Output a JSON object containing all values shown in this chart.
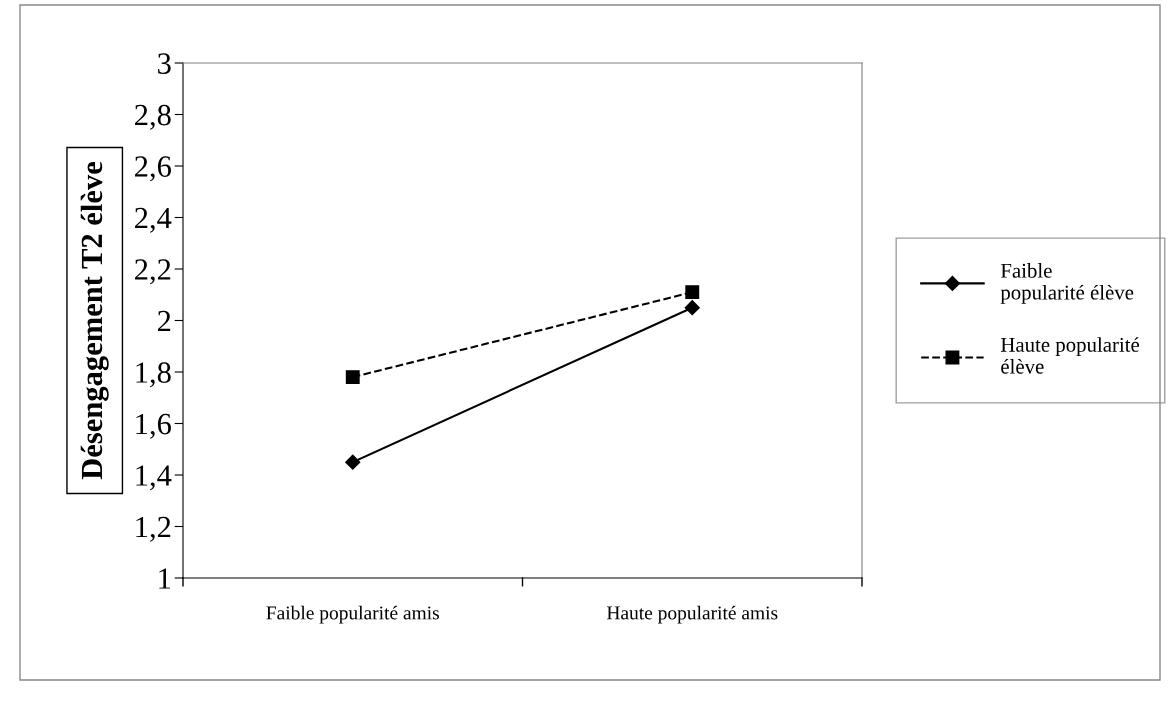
{
  "chart_data": {
    "type": "line",
    "ylabel": "Désengagement T2 élève",
    "categories": [
      "Faible popularité amis",
      "Haute popularité amis"
    ],
    "series": [
      {
        "name": "Faible\npopularité élève",
        "color": "#000000",
        "values": [
          1.45,
          2.05
        ],
        "marker": "diamond",
        "line_style": "solid"
      },
      {
        "name": "Haute popularité\nélève",
        "color": "#000000",
        "values": [
          1.78,
          2.11
        ],
        "marker": "square",
        "line_style": "dashed"
      }
    ],
    "ylim": [
      1,
      3
    ],
    "yticks": [
      {
        "value": 1,
        "label": "1"
      },
      {
        "value": 1.2,
        "label": "1,2"
      },
      {
        "value": 1.4,
        "label": "1,4"
      },
      {
        "value": 1.6,
        "label": "1,6"
      },
      {
        "value": 1.8,
        "label": "1,8"
      },
      {
        "value": 2,
        "label": "2"
      },
      {
        "value": 2.2,
        "label": "2,2"
      },
      {
        "value": 2.4,
        "label": "2,4"
      },
      {
        "value": 2.6,
        "label": "2,6"
      },
      {
        "value": 2.8,
        "label": "2,8"
      },
      {
        "value": 3,
        "label": "3"
      }
    ],
    "grid": false,
    "legend": "right"
  }
}
